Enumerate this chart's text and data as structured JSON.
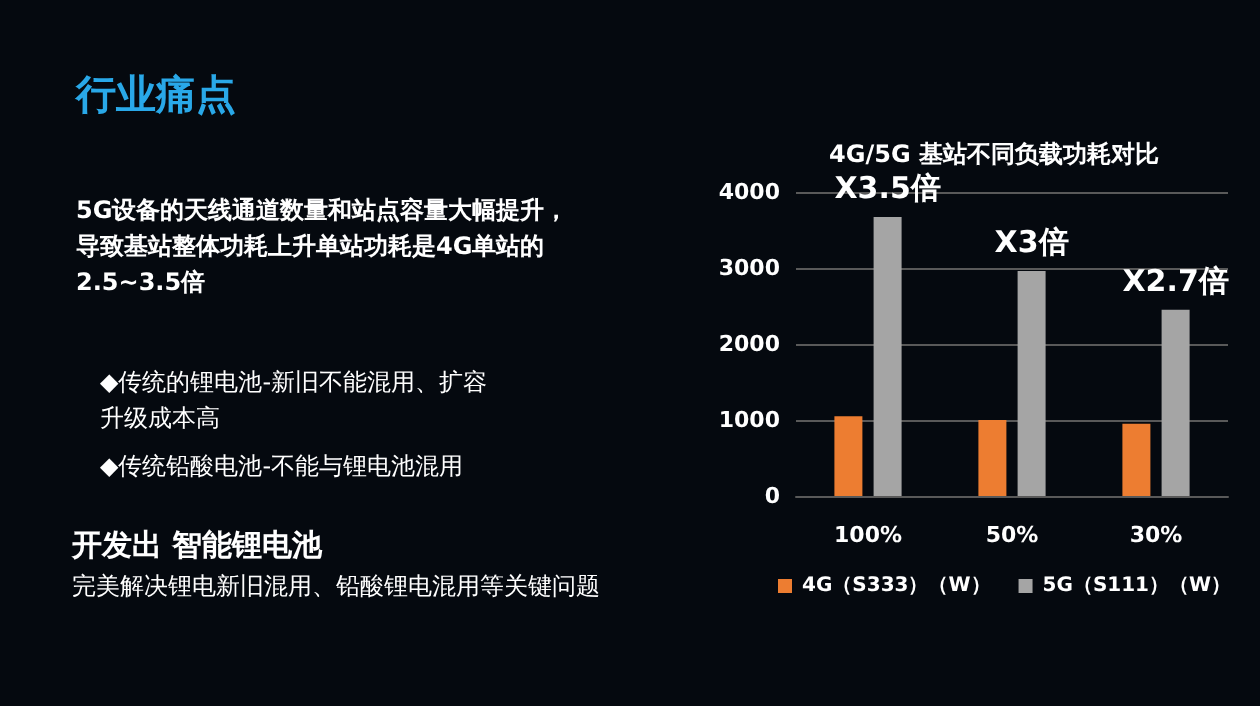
{
  "chart_data": {
    "type": "bar",
    "title": "4G/5G 基站不同负载功耗对比",
    "categories": [
      "100%",
      "50%",
      "30%"
    ],
    "series": [
      {
        "name": "4G（S333）（W）",
        "color": "#ed7d31",
        "values": [
          1050,
          1000,
          950
        ]
      },
      {
        "name": "5G（S111）（W）",
        "color": "#a5a5a5",
        "values": [
          3670,
          2960,
          2450
        ]
      }
    ],
    "ylim": [
      0,
      4000
    ],
    "yticks": [
      0,
      1000,
      2000,
      3000,
      4000
    ],
    "grid": "y",
    "legend": "bottom",
    "annotations": [
      "行业痛点",
      "5G设备的天线通道数量和站点容量大幅提升，导致基站整体功耗上升单站功耗是4G单站的 2.5~3.5倍",
      "◆传统的锂电池-新旧不能混用、扩容升级成本高",
      "◆传统铅酸电池-不能与锂电池混用",
      "开发出 智能锂电池",
      "完美解决锂电新旧混用、铅酸锂电混用等关键问题",
      {
        "text": "X3.5倍",
        "x": "100%",
        "y": 3670
      },
      {
        "text": "X3倍",
        "x": "50%",
        "y": 2960
      },
      {
        "text": "X2.7倍",
        "x": "30%",
        "y": 2450
      }
    ]
  }
}
